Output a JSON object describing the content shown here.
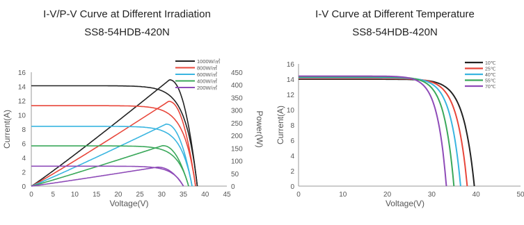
{
  "chart_data": [
    {
      "type": "line",
      "title": "I-V/P-V Curve at Different Irradiation",
      "subtitle": "SS8-54HDB-420N",
      "xlabel": "Voltage(V)",
      "ylabel": "Current(A)",
      "y2label": "Power(W)",
      "xlim": [
        0,
        45
      ],
      "ylim": [
        0,
        16
      ],
      "y2lim": [
        0,
        450
      ],
      "xticks": [
        "0",
        "5",
        "10",
        "15",
        "20",
        "25",
        "30",
        "35",
        "40",
        "45"
      ],
      "yticks": [
        "0",
        "2",
        "4",
        "6",
        "8",
        "10",
        "12",
        "14",
        "16"
      ],
      "y2ticks": [
        "0",
        "50",
        "100",
        "150",
        "200",
        "250",
        "300",
        "350",
        "400",
        "450"
      ],
      "legend_position": "top-right",
      "grid": false,
      "series": [
        {
          "name": "1000W/㎡",
          "color": "#222222",
          "isc": 14.1,
          "voc": 38.2,
          "vmp": 31.8,
          "imp": 13.2,
          "pmax": 420
        },
        {
          "name": "800W/㎡",
          "color": "#e8463a",
          "isc": 11.3,
          "voc": 37.8,
          "vmp": 31.6,
          "imp": 10.6,
          "pmax": 335
        },
        {
          "name": "600W/㎡",
          "color": "#39b5e0",
          "isc": 8.4,
          "voc": 37.0,
          "vmp": 31.0,
          "imp": 7.9,
          "pmax": 245
        },
        {
          "name": "400W/㎡",
          "color": "#3aa85a",
          "isc": 5.65,
          "voc": 36.2,
          "vmp": 30.2,
          "imp": 5.3,
          "pmax": 160
        },
        {
          "name": "200W/㎡",
          "color": "#8e4bb8",
          "isc": 2.8,
          "voc": 35.0,
          "vmp": 29.0,
          "imp": 2.6,
          "pmax": 75
        }
      ]
    },
    {
      "type": "line",
      "title": "I-V Curve at Different Temperature",
      "subtitle": "SS8-54HDB-420N",
      "xlabel": "Voltage(V)",
      "ylabel": "Current(A)",
      "xlim": [
        0,
        50
      ],
      "ylim": [
        0,
        16
      ],
      "xticks": [
        "0",
        "10",
        "20",
        "30",
        "40",
        "50"
      ],
      "yticks": [
        "0",
        "2",
        "4",
        "6",
        "8",
        "10",
        "12",
        "14",
        "16"
      ],
      "legend_position": "top-right",
      "grid": false,
      "series": [
        {
          "name": "10℃",
          "color": "#222222",
          "isc": 14.0,
          "voc": 39.6
        },
        {
          "name": "25℃",
          "color": "#e8463a",
          "isc": 14.1,
          "voc": 38.0
        },
        {
          "name": "40℃",
          "color": "#39b5e0",
          "isc": 14.2,
          "voc": 36.5
        },
        {
          "name": "55℃",
          "color": "#3aa85a",
          "isc": 14.3,
          "voc": 35.0
        },
        {
          "name": "70℃",
          "color": "#8e4bb8",
          "isc": 14.4,
          "voc": 33.3
        }
      ]
    }
  ]
}
